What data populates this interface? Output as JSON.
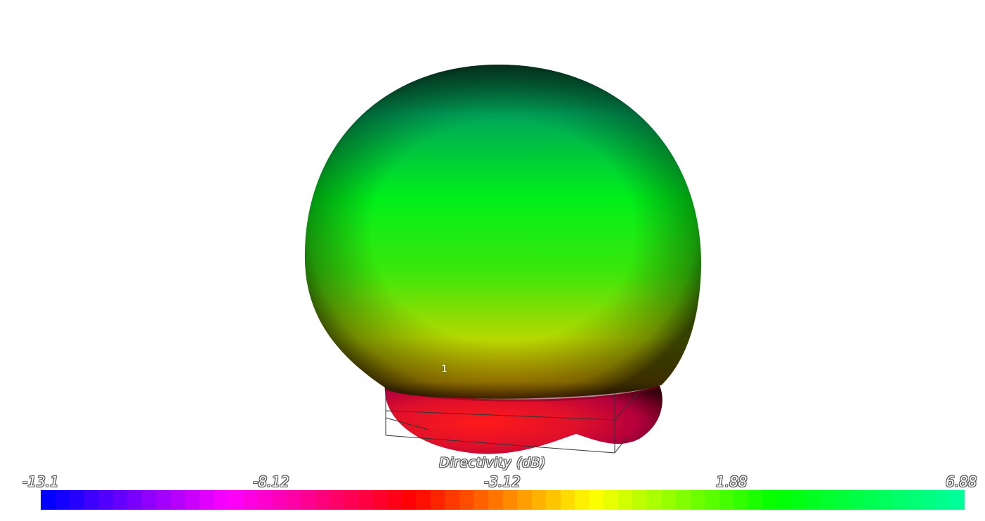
{
  "viewer": {
    "marker_label": "1"
  },
  "scalar_bar": {
    "title": "Directivity (dB)",
    "ticks": [
      "-13.1",
      "-8.12",
      "-3.12",
      "1.88",
      "6.88"
    ],
    "range": [
      -13.1,
      6.88
    ],
    "colors": [
      "#0000ff",
      "#ff00ff",
      "#ff0000",
      "#ffff00",
      "#00ff00",
      "#00ff99"
    ]
  }
}
